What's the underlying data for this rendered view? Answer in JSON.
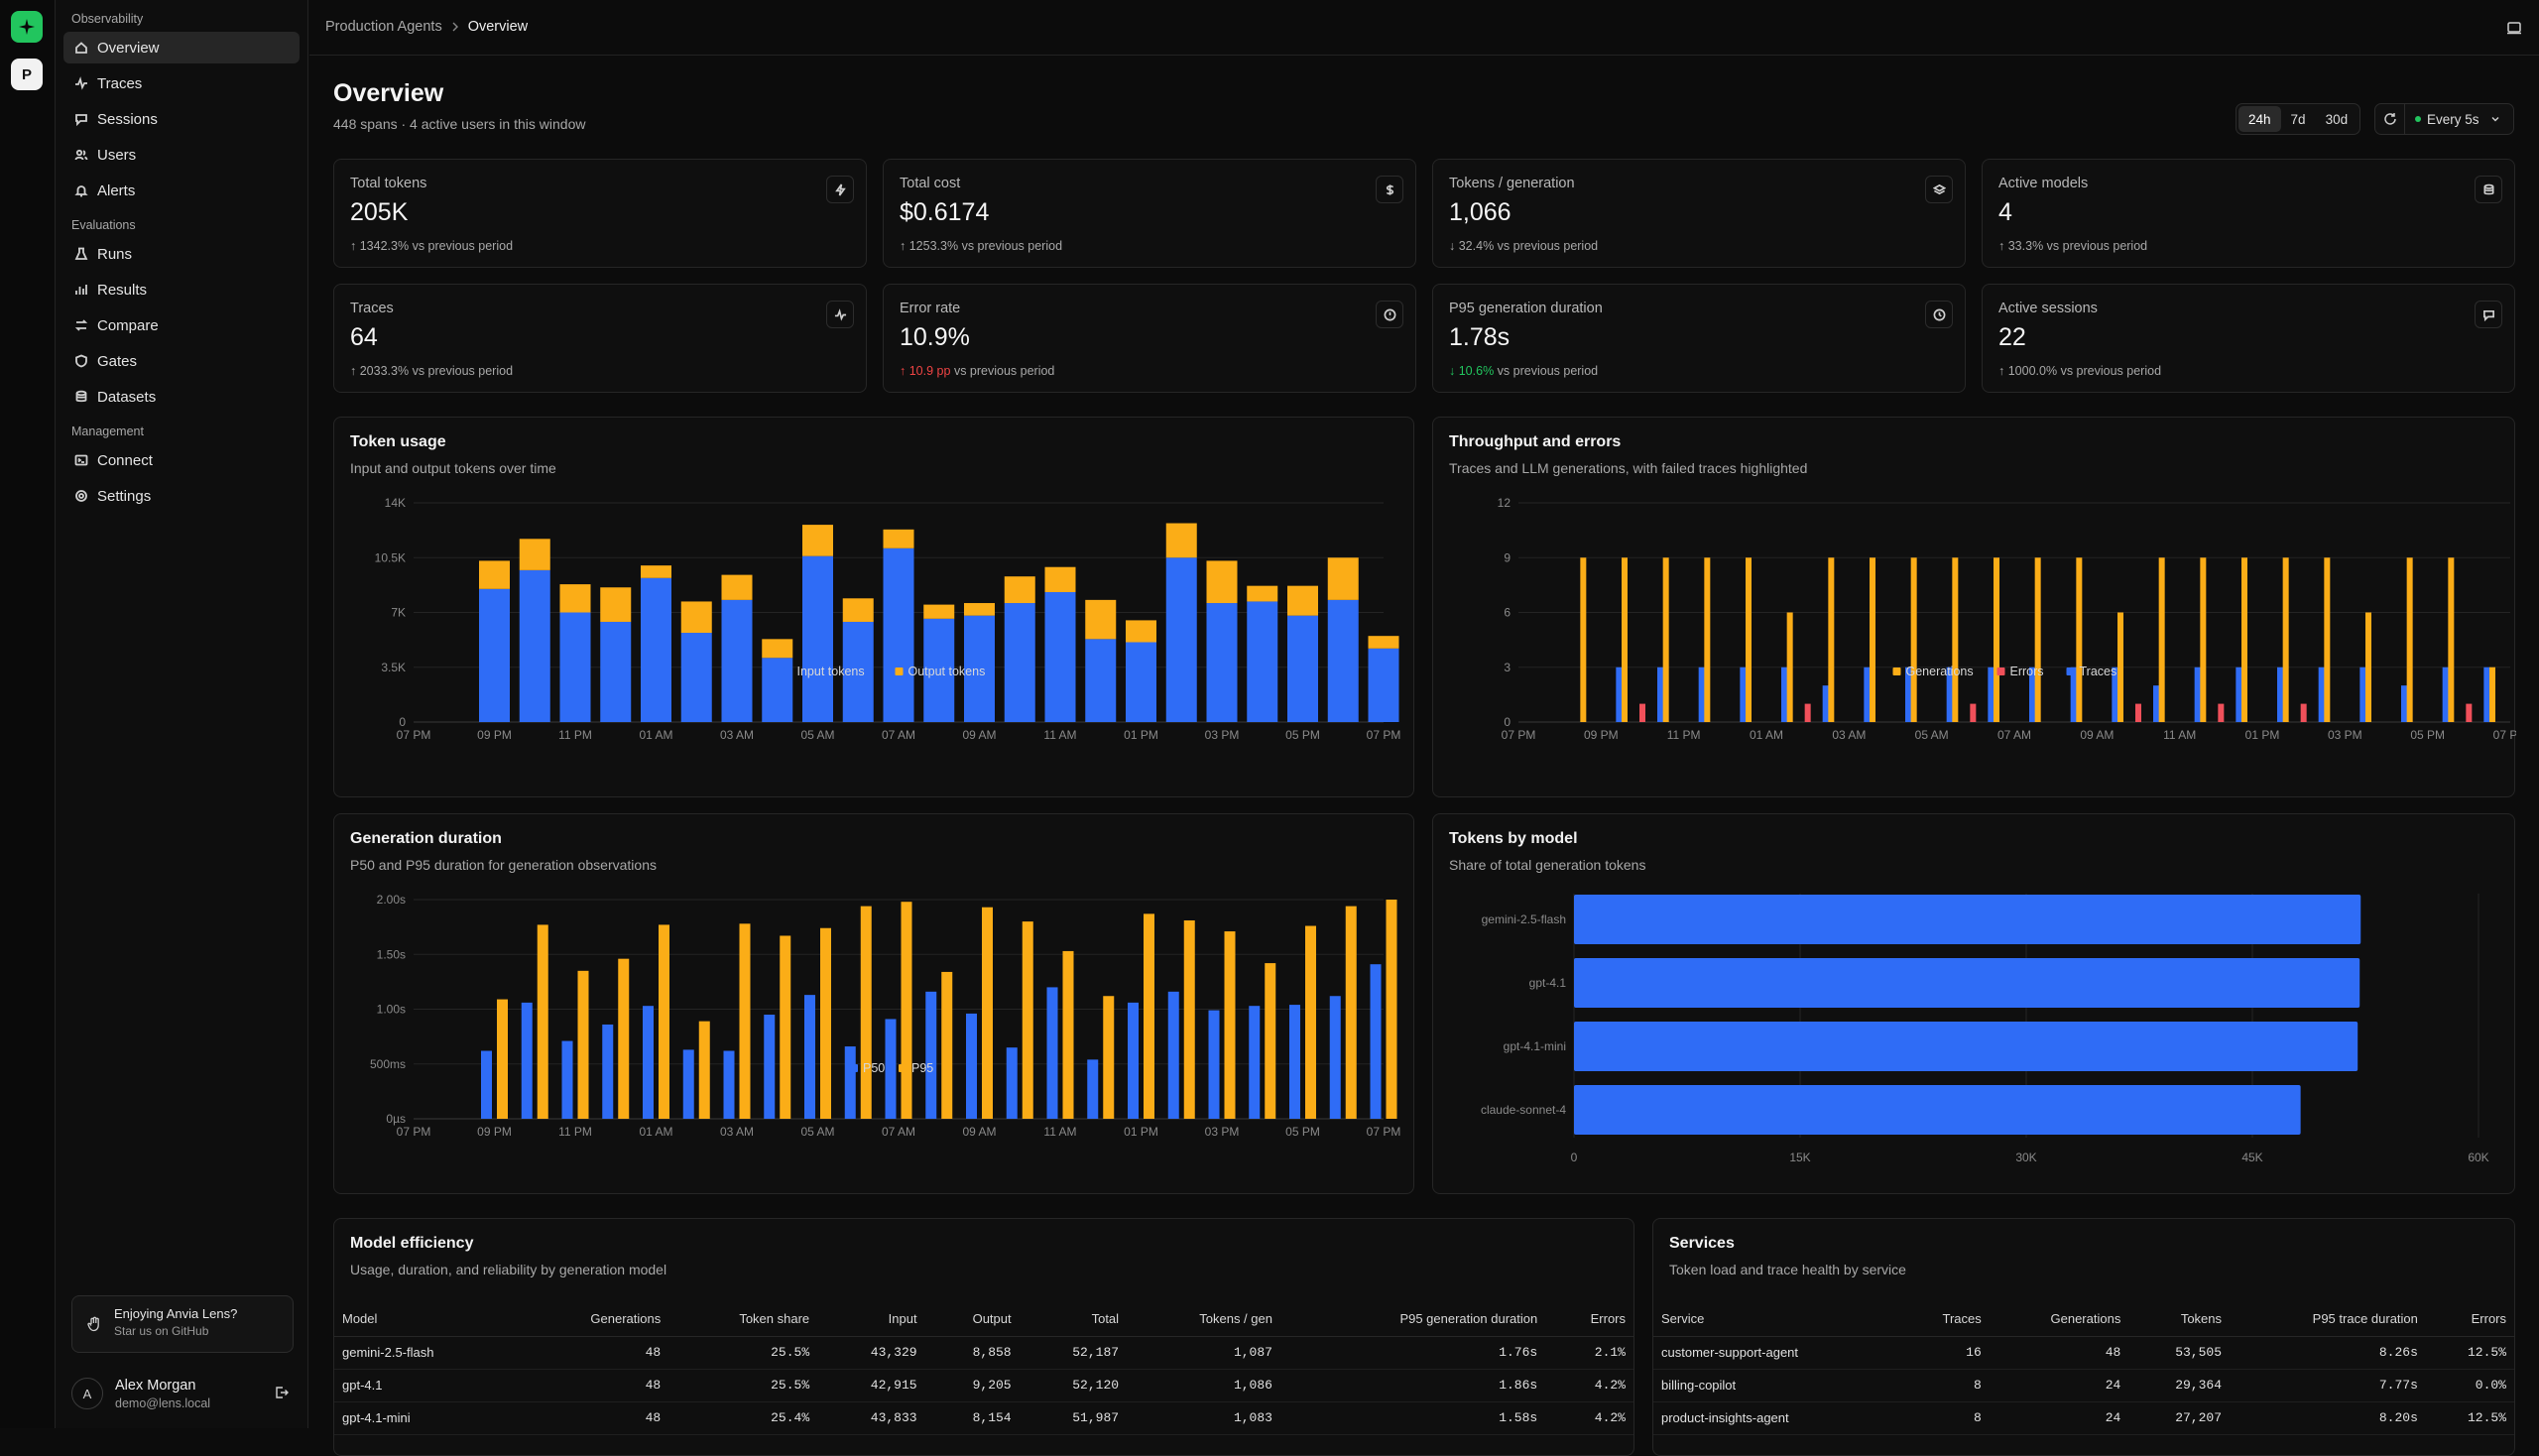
{
  "sidebar": {
    "sections": [
      {
        "label": "Observability",
        "items": [
          {
            "label": "Overview",
            "icon": "home-icon",
            "active": true
          },
          {
            "label": "Traces",
            "icon": "activity-icon"
          },
          {
            "label": "Sessions",
            "icon": "chat-icon"
          },
          {
            "label": "Users",
            "icon": "users-icon"
          },
          {
            "label": "Alerts",
            "icon": "bell-icon"
          }
        ]
      },
      {
        "label": "Evaluations",
        "items": [
          {
            "label": "Runs",
            "icon": "flask-icon"
          },
          {
            "label": "Results",
            "icon": "bar-chart-icon"
          },
          {
            "label": "Compare",
            "icon": "compare-icon"
          },
          {
            "label": "Gates",
            "icon": "shield-icon"
          },
          {
            "label": "Datasets",
            "icon": "database-icon"
          }
        ]
      },
      {
        "label": "Management",
        "items": [
          {
            "label": "Connect",
            "icon": "terminal-icon"
          },
          {
            "label": "Settings",
            "icon": "gear-icon"
          }
        ]
      }
    ],
    "project_initial": "P",
    "promo": {
      "title": "Enjoying Anvia Lens?",
      "subtitle": "Star us on GitHub"
    },
    "user": {
      "initial": "A",
      "name": "Alex Morgan",
      "email": "demo@lens.local"
    }
  },
  "breadcrumb": {
    "parent": "Production Agents",
    "current": "Overview"
  },
  "page": {
    "title": "Overview",
    "subtitle": "448 spans · 4 active users in this window"
  },
  "range": {
    "options": [
      "24h",
      "7d",
      "30d"
    ],
    "selected": "24h"
  },
  "refresh": {
    "label": "Every 5s"
  },
  "kpis": [
    {
      "label": "Total tokens",
      "value": "205K",
      "delta": "1342.3%",
      "suffix": "vs previous period",
      "dir": "up",
      "tone": "neutral",
      "icon": "bolt-icon"
    },
    {
      "label": "Total cost",
      "value": "$0.6174",
      "delta": "1253.3%",
      "suffix": "vs previous period",
      "dir": "up",
      "tone": "neutral",
      "icon": "dollar-icon"
    },
    {
      "label": "Tokens / generation",
      "value": "1,066",
      "delta": "32.4%",
      "suffix": "vs previous period",
      "dir": "down",
      "tone": "neutral",
      "icon": "layers-icon"
    },
    {
      "label": "Active models",
      "value": "4",
      "delta": "33.3%",
      "suffix": "vs previous period",
      "dir": "up",
      "tone": "neutral",
      "icon": "database-icon"
    },
    {
      "label": "Traces",
      "value": "64",
      "delta": "2033.3%",
      "suffix": "vs previous period",
      "dir": "up",
      "tone": "neutral",
      "icon": "activity-icon"
    },
    {
      "label": "Error rate",
      "value": "10.9%",
      "delta": "10.9 pp",
      "suffix": "vs previous period",
      "dir": "up",
      "tone": "bad",
      "icon": "alert-circle-icon"
    },
    {
      "label": "P95 generation duration",
      "value": "1.78s",
      "delta": "10.6%",
      "suffix": "vs previous period",
      "dir": "down",
      "tone": "good",
      "icon": "clock-icon"
    },
    {
      "label": "Active sessions",
      "value": "22",
      "delta": "1000.0%",
      "suffix": "vs previous period",
      "dir": "up",
      "tone": "neutral",
      "icon": "chat-icon"
    }
  ],
  "colors": {
    "blue": "#2f6cf6",
    "orange": "#fbad17",
    "red": "#f0505a",
    "green": "#22c55e"
  },
  "charts": {
    "token_usage": {
      "title": "Token usage",
      "subtitle": "Input and output tokens over time"
    },
    "throughput": {
      "title": "Throughput and errors",
      "subtitle": "Traces and LLM generations, with failed traces highlighted"
    },
    "duration": {
      "title": "Generation duration",
      "subtitle": "P50 and P95 duration for generation observations"
    },
    "by_model": {
      "title": "Tokens by model",
      "subtitle": "Share of total generation tokens"
    }
  },
  "chart_data": [
    {
      "type": "bar",
      "stacked": true,
      "title": "Token usage",
      "x_ticks": [
        "07 PM",
        "09 PM",
        "11 PM",
        "01 AM",
        "03 AM",
        "05 AM",
        "07 AM",
        "09 AM",
        "11 AM",
        "01 PM",
        "03 PM",
        "05 PM",
        "07 PM"
      ],
      "ylim": [
        0,
        14000
      ],
      "y_ticks": [
        "0",
        "3.5K",
        "7K",
        "10.5K",
        "14K"
      ],
      "slots": 25,
      "first_bar_slot": 2,
      "series": [
        {
          "name": "Input tokens",
          "color": "#2f6cf6",
          "values": [
            8500,
            9700,
            7000,
            6400,
            9200,
            5700,
            7800,
            4100,
            10600,
            6400,
            11100,
            6600,
            6800,
            7600,
            8300,
            5300,
            5100,
            10500,
            7600,
            7700,
            6800,
            7800,
            4700
          ]
        },
        {
          "name": "Output tokens",
          "color": "#fbad17",
          "values": [
            1800,
            2000,
            1800,
            2200,
            800,
            2000,
            1600,
            1200,
            2000,
            1500,
            1200,
            900,
            800,
            1700,
            1600,
            2500,
            1400,
            2200,
            2700,
            1000,
            1900,
            2700,
            800
          ]
        }
      ],
      "legend": "bottom-center",
      "grid": true
    },
    {
      "type": "bar",
      "title": "Throughput and errors",
      "x_ticks": [
        "07 PM",
        "09 PM",
        "11 PM",
        "01 AM",
        "03 AM",
        "05 AM",
        "07 AM",
        "09 AM",
        "11 AM",
        "01 PM",
        "03 PM",
        "05 PM",
        "07 PM"
      ],
      "ylim": [
        0,
        12
      ],
      "y_ticks": [
        "0",
        "3",
        "6",
        "9",
        "12"
      ],
      "slots": 25,
      "first_bar_slot": 2,
      "series": [
        {
          "name": "Generations",
          "color": "#fbad17",
          "values": [
            9,
            9,
            9,
            9,
            9,
            6,
            9,
            9,
            9,
            9,
            9,
            9,
            9,
            6,
            9,
            9,
            9,
            9,
            9,
            6,
            9,
            9,
            3
          ]
        },
        {
          "name": "Errors",
          "color": "#f0505a",
          "values": [
            0,
            1,
            0,
            0,
            0,
            1,
            0,
            0,
            0,
            1,
            0,
            0,
            0,
            1,
            0,
            1,
            0,
            1,
            0,
            0,
            0,
            1,
            0
          ]
        },
        {
          "name": "Traces",
          "color": "#2f6cf6",
          "values": [
            3,
            3,
            3,
            3,
            3,
            2,
            3,
            3,
            3,
            3,
            3,
            3,
            3,
            2,
            3,
            3,
            3,
            3,
            3,
            2,
            3,
            3,
            1
          ]
        }
      ],
      "legend": "bottom-center",
      "grid": true
    },
    {
      "type": "bar",
      "title": "Generation duration",
      "x_ticks": [
        "07 PM",
        "09 PM",
        "11 PM",
        "01 AM",
        "03 AM",
        "05 AM",
        "07 AM",
        "09 AM",
        "11 AM",
        "01 PM",
        "03 PM",
        "05 PM",
        "07 PM"
      ],
      "ylim": [
        0,
        2.0
      ],
      "y_ticks": [
        "0µs",
        "500ms",
        "1.00s",
        "1.50s",
        "2.00s"
      ],
      "slots": 25,
      "first_bar_slot": 2,
      "series": [
        {
          "name": "P50",
          "color": "#2f6cf6",
          "values": [
            0.62,
            1.06,
            0.71,
            0.86,
            1.03,
            0.63,
            0.62,
            0.95,
            1.13,
            0.66,
            0.91,
            1.16,
            0.96,
            0.65,
            1.2,
            0.54,
            1.06,
            1.16,
            0.99,
            1.03,
            1.04,
            1.12,
            1.41
          ]
        },
        {
          "name": "P95",
          "color": "#fbad17",
          "values": [
            1.09,
            1.77,
            1.35,
            1.46,
            1.77,
            0.89,
            1.78,
            1.67,
            1.74,
            1.94,
            1.98,
            1.34,
            1.93,
            1.8,
            1.53,
            1.12,
            1.87,
            1.81,
            1.71,
            1.42,
            1.76,
            1.94,
            2.0
          ]
        }
      ],
      "legend": "bottom-center",
      "grid": true
    },
    {
      "type": "bar",
      "orientation": "horizontal",
      "title": "Tokens by model",
      "categories": [
        "gemini-2.5-flash",
        "gpt-4.1",
        "gpt-4.1-mini",
        "claude-sonnet-4"
      ],
      "values": [
        52187,
        52120,
        51987,
        48200
      ],
      "xlim": [
        0,
        60000
      ],
      "x_ticks": [
        "0",
        "15K",
        "30K",
        "45K",
        "60K"
      ],
      "color": "#2f6cf6"
    }
  ],
  "model_efficiency": {
    "title": "Model efficiency",
    "subtitle": "Usage, duration, and reliability by generation model",
    "columns": [
      "Model",
      "Generations",
      "Token share",
      "Input",
      "Output",
      "Total",
      "Tokens / gen",
      "P95 generation duration",
      "Errors"
    ],
    "rows": [
      [
        "gemini-2.5-flash",
        "48",
        "25.5%",
        "43,329",
        "8,858",
        "52,187",
        "1,087",
        "1.76s",
        "2.1%"
      ],
      [
        "gpt-4.1",
        "48",
        "25.5%",
        "42,915",
        "9,205",
        "52,120",
        "1,086",
        "1.86s",
        "4.2%"
      ],
      [
        "gpt-4.1-mini",
        "48",
        "25.4%",
        "43,833",
        "8,154",
        "51,987",
        "1,083",
        "1.58s",
        "4.2%"
      ]
    ]
  },
  "services": {
    "title": "Services",
    "subtitle": "Token load and trace health by service",
    "columns": [
      "Service",
      "Traces",
      "Generations",
      "Tokens",
      "P95 trace duration",
      "Errors"
    ],
    "rows": [
      [
        "customer-support-agent",
        "16",
        "48",
        "53,505",
        "8.26s",
        "12.5%"
      ],
      [
        "billing-copilot",
        "8",
        "24",
        "29,364",
        "7.77s",
        "0.0%"
      ],
      [
        "product-insights-agent",
        "8",
        "24",
        "27,207",
        "8.20s",
        "12.5%"
      ]
    ]
  }
}
